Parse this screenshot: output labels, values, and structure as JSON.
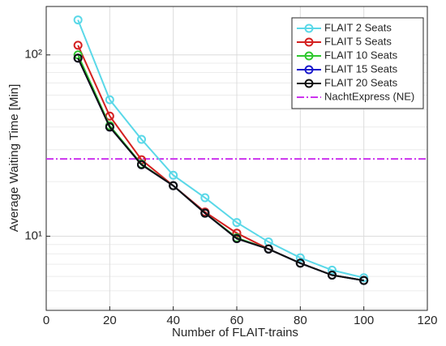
{
  "chart_data": {
    "type": "line",
    "xlabel": "Number of FLAIT-trains",
    "ylabel": "Average Waiting Time [Min]",
    "x": [
      10,
      20,
      30,
      40,
      50,
      60,
      70,
      80,
      90,
      100
    ],
    "series": [
      {
        "name": "FLAIT 2 Seats",
        "color": "#5ad8e8",
        "values": [
          156,
          56.6,
          34.2,
          21.7,
          16.3,
          11.9,
          9.3,
          7.6,
          6.5,
          5.9
        ]
      },
      {
        "name": "FLAIT 5 Seats",
        "color": "#d42020",
        "values": [
          113,
          46,
          26.4,
          19,
          13.6,
          10.4,
          8.5,
          7.1,
          6.1,
          5.7
        ]
      },
      {
        "name": "FLAIT 10 Seats",
        "color": "#2ec82e",
        "values": [
          100,
          40.7,
          25,
          19,
          13.4,
          9.8,
          8.5,
          7.1,
          6.1,
          5.7
        ]
      },
      {
        "name": "FLAIT 15 Seats",
        "color": "#1a1acc",
        "values": [
          96,
          40,
          24.8,
          19,
          13.4,
          9.7,
          8.5,
          7.1,
          6.1,
          5.7
        ]
      },
      {
        "name": "FLAIT 20 Seats",
        "color": "#111111",
        "values": [
          96,
          40,
          24.8,
          19,
          13.4,
          9.7,
          8.5,
          7.1,
          6.1,
          5.7
        ]
      }
    ],
    "hlines": [
      {
        "name": "NachtExpress (NE)",
        "color": "#cc33ee",
        "value": 26.7
      }
    ],
    "xlim": [
      0,
      120
    ],
    "xticks": [
      0,
      20,
      40,
      60,
      80,
      100,
      120
    ],
    "ylim": [
      3.9,
      185
    ],
    "ylog": true,
    "yticks": [
      {
        "value": 10,
        "label": "10¹"
      },
      {
        "value": 100,
        "label": "10²"
      }
    ],
    "yminor": [
      4,
      5,
      6,
      7,
      8,
      9,
      20,
      30,
      40,
      50,
      60,
      70,
      80,
      90
    ],
    "grid": true,
    "legend": "upper right"
  }
}
